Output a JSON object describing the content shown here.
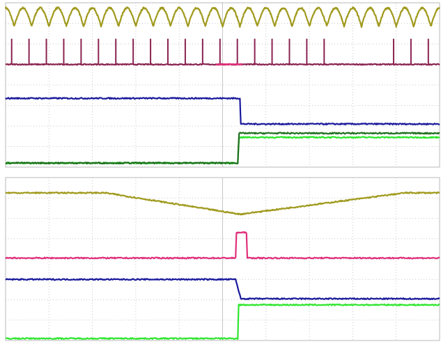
{
  "colors": {
    "background": "#ffffff",
    "grid": "#b8b8b8",
    "olive": "#a09a1e",
    "maroon": "#8a2350",
    "pink": "#e0307a",
    "blue": "#1a1a9c",
    "dark_green": "#1e6e1e",
    "bright_green": "#2ee62e"
  },
  "chart_data": [
    {
      "type": "line",
      "title": "",
      "xlabel": "",
      "ylabel": "",
      "grid": true,
      "axis_labels_shown": false,
      "x_divisions": 10,
      "y_divisions": 8,
      "xlim": [
        0,
        10
      ],
      "series": [
        {
          "color": "olive",
          "shape": "periodic",
          "level": 7.3,
          "amplitude": 0.45,
          "cycles": 25
        },
        {
          "color": "maroon",
          "shape": "pulse_train",
          "level": 5.0,
          "pulse_height": 1.25,
          "pulse_count": 25,
          "gap_from": 7.45,
          "gap_to": 8.85
        },
        {
          "color": "pink",
          "shape": "pulse",
          "level": 5.0,
          "high": 5.0,
          "t_start": 4.85,
          "t_end": 5.45
        },
        {
          "color": "blue",
          "points": [
            [
              0,
              3.35
            ],
            [
              5.4,
              3.35
            ],
            [
              5.42,
              2.1
            ],
            [
              10,
              2.1
            ]
          ]
        },
        {
          "color": "bright_green",
          "points": [
            [
              0,
              0.2
            ],
            [
              4.9,
              0.2
            ],
            [
              5.35,
              0.2
            ],
            [
              5.38,
              1.45
            ],
            [
              10,
              1.45
            ]
          ]
        },
        {
          "color": "dark_green",
          "points": [
            [
              0,
              0.2
            ],
            [
              5.35,
              0.2
            ],
            [
              5.38,
              1.65
            ],
            [
              10,
              1.65
            ]
          ]
        }
      ]
    },
    {
      "type": "line",
      "title": "",
      "xlabel": "",
      "ylabel": "",
      "grid": true,
      "axis_labels_shown": false,
      "x_divisions": 10,
      "y_divisions": 8,
      "xlim": [
        0,
        10
      ],
      "series": [
        {
          "color": "olive",
          "points": [
            [
              0,
              7.25
            ],
            [
              2.3,
              7.25
            ],
            [
              5.4,
              6.2
            ],
            [
              9.2,
              7.25
            ],
            [
              10,
              7.25
            ]
          ]
        },
        {
          "color": "pink",
          "points": [
            [
              0,
              4.05
            ],
            [
              5.3,
              4.05
            ],
            [
              5.32,
              5.3
            ],
            [
              5.55,
              5.3
            ],
            [
              5.57,
              4.05
            ],
            [
              10,
              4.05
            ]
          ]
        },
        {
          "color": "blue",
          "points": [
            [
              0,
              3.0
            ],
            [
              5.3,
              3.0
            ],
            [
              5.42,
              2.05
            ],
            [
              10,
              2.05
            ]
          ]
        },
        {
          "color": "bright_green",
          "points": [
            [
              0,
              0.1
            ],
            [
              5.35,
              0.1
            ],
            [
              5.37,
              1.75
            ],
            [
              10,
              1.75
            ]
          ]
        }
      ]
    }
  ]
}
